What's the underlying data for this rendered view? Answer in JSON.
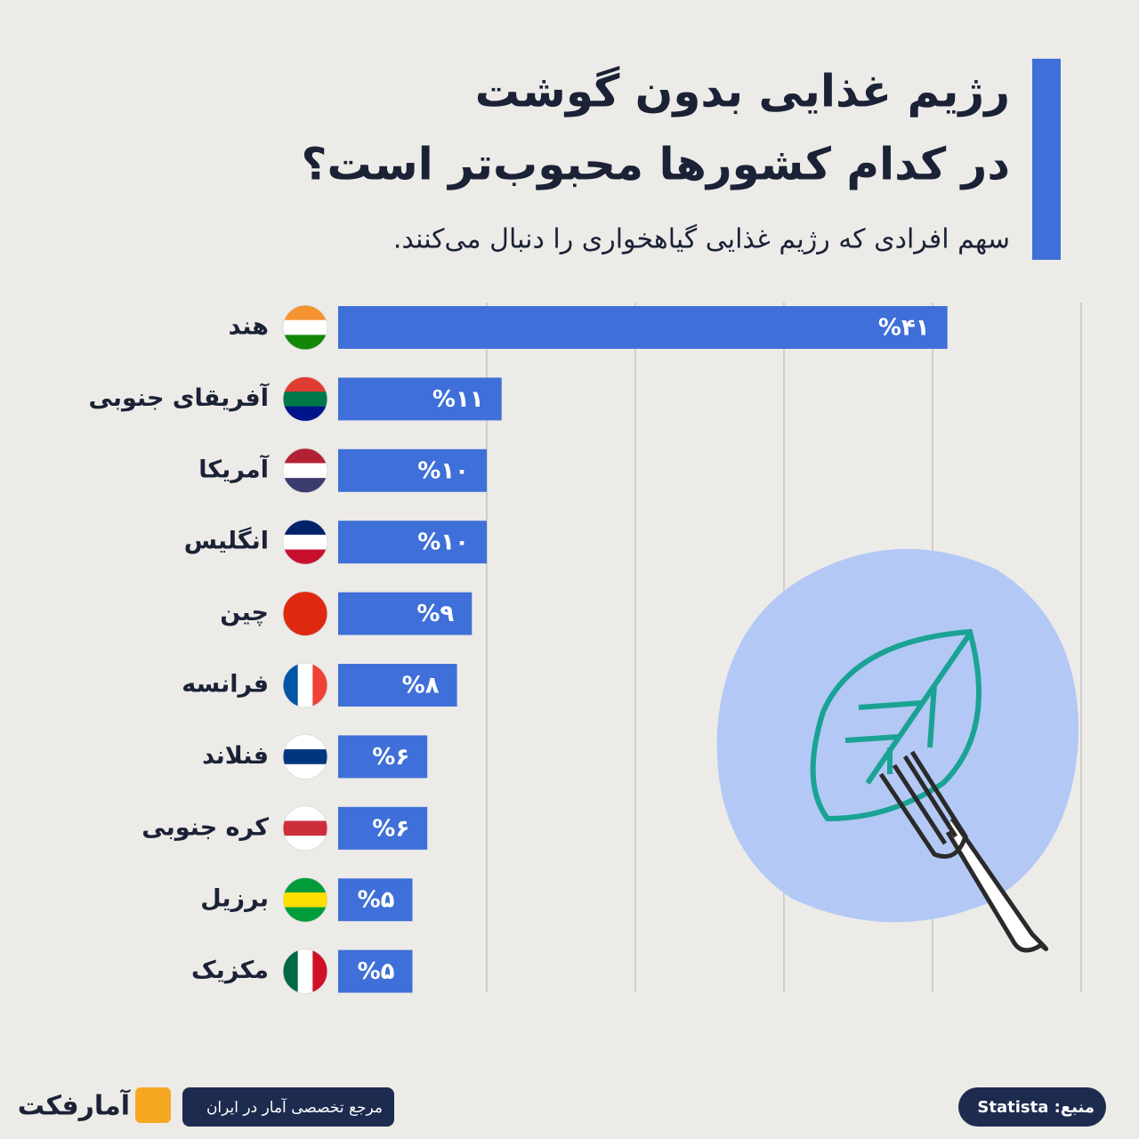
{
  "chart_data": {
    "type": "bar",
    "orientation": "horizontal",
    "title": [
      "رژیم غذایی بدون گوشت",
      "در کدام کشورها محبوب‌تر است؟"
    ],
    "subtitle": "سهم افرادی که رژیم غذایی گیاهخواری را دنبال می‌کنند.",
    "categories": [
      "هند",
      "آفریقای جنوبی",
      "آمریکا",
      "انگلیس",
      "چین",
      "فرانسه",
      "فنلاند",
      "کره جنوبی",
      "برزیل",
      "مکزیک"
    ],
    "values": [
      41,
      11,
      10,
      10,
      9,
      8,
      6,
      6,
      5,
      5
    ],
    "value_labels": [
      "%۴۱",
      "%۱۱",
      "%۱۰",
      "%۱۰",
      "%۹",
      "%۸",
      "%۶",
      "%۶",
      "%۵",
      "%۵"
    ],
    "color": "#3f6fd8",
    "xlim": [
      0,
      50
    ],
    "xticks": [
      10,
      20,
      30,
      40,
      50
    ],
    "grid": true,
    "footer": {
      "tagline": "مرجع تخصصی آمار در ایران",
      "source": "منبع: Statista",
      "brand": "آمارفکت"
    }
  }
}
